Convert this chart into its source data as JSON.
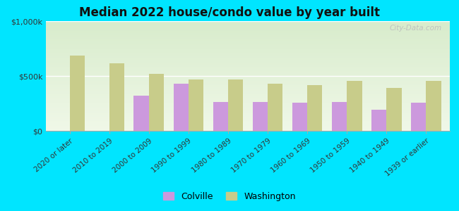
{
  "title": "Median 2022 house/condo value by year built",
  "categories": [
    "2020 or later",
    "2010 to 2019",
    "2000 to 2009",
    "1990 to 1999",
    "1980 to 1989",
    "1970 to 1979",
    "1960 to 1969",
    "1950 to 1959",
    "1940 to 1949",
    "1939 or earlier"
  ],
  "colville": [
    0,
    0,
    320000,
    430000,
    265000,
    265000,
    255000,
    265000,
    195000,
    255000
  ],
  "washington": [
    685000,
    615000,
    520000,
    465000,
    465000,
    430000,
    415000,
    455000,
    390000,
    455000
  ],
  "colville_color": "#cc99dd",
  "washington_color": "#c8cc8a",
  "background_outer": "#00e5ff",
  "ylim": [
    0,
    1000000
  ],
  "ytick_labels": [
    "$0",
    "$500k",
    "$1,000k"
  ],
  "ytick_values": [
    0,
    500000,
    1000000
  ],
  "legend_labels": [
    "Colville",
    "Washington"
  ],
  "watermark": "City-Data.com",
  "bar_width": 0.38,
  "grad_top": "#d8eccc",
  "grad_bottom": "#f0f8e8"
}
